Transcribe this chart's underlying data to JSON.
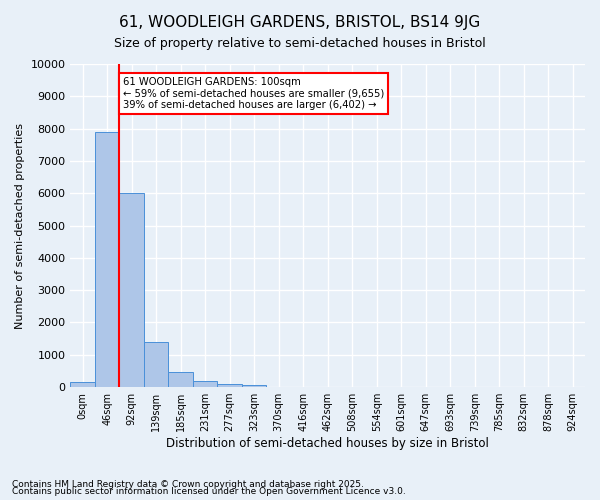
{
  "title": "61, WOODLEIGH GARDENS, BRISTOL, BS14 9JG",
  "subtitle": "Size of property relative to semi-detached houses in Bristol",
  "xlabel": "Distribution of semi-detached houses by size in Bristol",
  "ylabel": "Number of semi-detached properties",
  "bar_values": [
    150,
    7900,
    6000,
    1400,
    480,
    200,
    100,
    50,
    0,
    0,
    0,
    0,
    0,
    0,
    0,
    0,
    0,
    0,
    0,
    0,
    0
  ],
  "bar_labels": [
    "0sqm",
    "46sqm",
    "92sqm",
    "139sqm",
    "185sqm",
    "231sqm",
    "277sqm",
    "323sqm",
    "370sqm",
    "416sqm",
    "462sqm",
    "508sqm",
    "554sqm",
    "601sqm",
    "647sqm",
    "693sqm",
    "739sqm",
    "785sqm",
    "832sqm",
    "878sqm",
    "924sqm"
  ],
  "bar_color": "#aec6e8",
  "bar_edge_color": "#4a90d9",
  "background_color": "#e8f0f8",
  "grid_color": "#ffffff",
  "property_line_x": 2,
  "property_label": "61 WOODLEIGH GARDENS: 100sqm",
  "smaller_text": "← 59% of semi-detached houses are smaller (9,655)",
  "larger_text": "39% of semi-detached houses are larger (6,402) →",
  "annotation_box_color": "#ff0000",
  "ylim": [
    0,
    10000
  ],
  "yticks": [
    0,
    1000,
    2000,
    3000,
    4000,
    5000,
    6000,
    7000,
    8000,
    9000,
    10000
  ],
  "footnote1": "Contains HM Land Registry data © Crown copyright and database right 2025.",
  "footnote2": "Contains public sector information licensed under the Open Government Licence v3.0."
}
